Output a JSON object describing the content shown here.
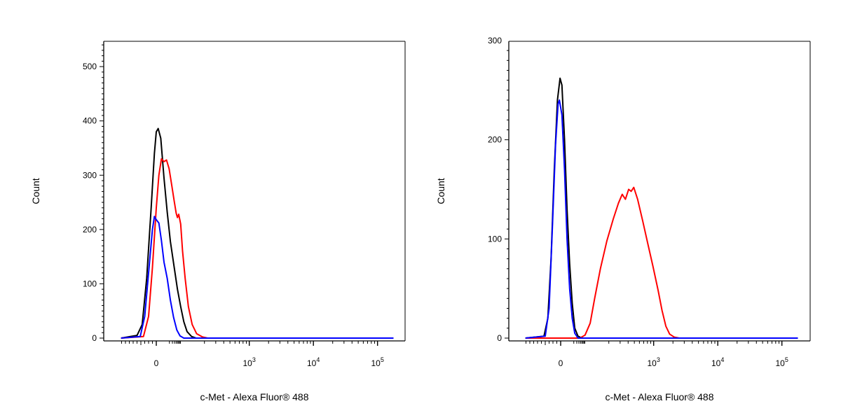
{
  "chart_data": [
    {
      "type": "line",
      "xscale": "biexponential",
      "xlabel": "c-Met - Alexa Fluor® 488",
      "ylabel": "Count",
      "ylim": [
        0,
        550
      ],
      "y_ticks": [
        "0",
        "100",
        "200",
        "300",
        "400",
        "500"
      ],
      "x_ticks": [
        {
          "base": "0",
          "exp": ""
        },
        {
          "base": "10",
          "exp": "3"
        },
        {
          "base": "10",
          "exp": "4"
        },
        {
          "base": "10",
          "exp": "5"
        }
      ],
      "series": [
        {
          "color": "#000000",
          "points": [
            [
              -0.55,
              0
            ],
            [
              -0.3,
              5
            ],
            [
              -0.22,
              25
            ],
            [
              -0.15,
              110
            ],
            [
              -0.08,
              240
            ],
            [
              -0.03,
              340
            ],
            [
              0.0,
              380
            ],
            [
              0.03,
              386
            ],
            [
              0.07,
              368
            ],
            [
              0.12,
              295
            ],
            [
              0.17,
              232
            ],
            [
              0.22,
              178
            ],
            [
              0.28,
              130
            ],
            [
              0.33,
              90
            ],
            [
              0.38,
              58
            ],
            [
              0.43,
              30
            ],
            [
              0.48,
              12
            ],
            [
              0.55,
              3
            ],
            [
              0.62,
              0
            ],
            [
              3.7,
              0
            ]
          ]
        },
        {
          "color": "#ff0000",
          "points": [
            [
              -0.55,
              0
            ],
            [
              -0.2,
              3
            ],
            [
              -0.12,
              40
            ],
            [
              -0.06,
              130
            ],
            [
              0.0,
              240
            ],
            [
              0.04,
              300
            ],
            [
              0.08,
              330
            ],
            [
              0.12,
              325
            ],
            [
              0.16,
              328
            ],
            [
              0.2,
              312
            ],
            [
              0.24,
              282
            ],
            [
              0.28,
              252
            ],
            [
              0.31,
              230
            ],
            [
              0.33,
              222
            ],
            [
              0.35,
              228
            ],
            [
              0.38,
              210
            ],
            [
              0.41,
              160
            ],
            [
              0.45,
              110
            ],
            [
              0.5,
              58
            ],
            [
              0.56,
              25
            ],
            [
              0.63,
              8
            ],
            [
              0.72,
              2
            ],
            [
              0.8,
              0
            ],
            [
              3.7,
              0
            ]
          ]
        },
        {
          "color": "#0000ff",
          "points": [
            [
              -0.55,
              0
            ],
            [
              -0.25,
              3
            ],
            [
              -0.18,
              40
            ],
            [
              -0.12,
              120
            ],
            [
              -0.06,
              200
            ],
            [
              -0.03,
              224
            ],
            [
              0.0,
              218
            ],
            [
              0.04,
              212
            ],
            [
              0.08,
              180
            ],
            [
              0.12,
              140
            ],
            [
              0.17,
              110
            ],
            [
              0.22,
              70
            ],
            [
              0.27,
              38
            ],
            [
              0.32,
              15
            ],
            [
              0.37,
              4
            ],
            [
              0.43,
              0
            ],
            [
              3.7,
              0
            ]
          ]
        }
      ]
    },
    {
      "type": "line",
      "xscale": "biexponential",
      "xlabel": "c-Met - Alexa Fluor® 488",
      "ylabel": "Count",
      "ylim": [
        0,
        300
      ],
      "y_ticks": [
        "0",
        "100",
        "200",
        "300"
      ],
      "x_ticks": [
        {
          "base": "0",
          "exp": ""
        },
        {
          "base": "10",
          "exp": "3"
        },
        {
          "base": "10",
          "exp": "4"
        },
        {
          "base": "10",
          "exp": "5"
        }
      ],
      "series": [
        {
          "color": "#000000",
          "points": [
            [
              -0.55,
              0
            ],
            [
              -0.26,
              2
            ],
            [
              -0.2,
              20
            ],
            [
              -0.15,
              80
            ],
            [
              -0.1,
              170
            ],
            [
              -0.05,
              240
            ],
            [
              -0.01,
              262
            ],
            [
              0.02,
              255
            ],
            [
              0.06,
              200
            ],
            [
              0.1,
              130
            ],
            [
              0.14,
              75
            ],
            [
              0.18,
              35
            ],
            [
              0.22,
              10
            ],
            [
              0.27,
              2
            ],
            [
              0.33,
              0
            ],
            [
              3.7,
              0
            ]
          ]
        },
        {
          "color": "#ff0000",
          "points": [
            [
              -0.55,
              0
            ],
            [
              0.3,
              0
            ],
            [
              0.38,
              3
            ],
            [
              0.46,
              15
            ],
            [
              0.53,
              40
            ],
            [
              0.62,
              70
            ],
            [
              0.72,
              98
            ],
            [
              0.82,
              120
            ],
            [
              0.9,
              136
            ],
            [
              0.96,
              145
            ],
            [
              1.01,
              140
            ],
            [
              1.06,
              150
            ],
            [
              1.1,
              148
            ],
            [
              1.14,
              152
            ],
            [
              1.2,
              140
            ],
            [
              1.28,
              118
            ],
            [
              1.36,
              95
            ],
            [
              1.44,
              72
            ],
            [
              1.52,
              48
            ],
            [
              1.58,
              28
            ],
            [
              1.64,
              12
            ],
            [
              1.7,
              4
            ],
            [
              1.77,
              1
            ],
            [
              1.85,
              0
            ],
            [
              3.7,
              0
            ]
          ]
        },
        {
          "color": "#0000ff",
          "points": [
            [
              -0.55,
              0
            ],
            [
              -0.24,
              2
            ],
            [
              -0.18,
              30
            ],
            [
              -0.13,
              110
            ],
            [
              -0.08,
              195
            ],
            [
              -0.04,
              236
            ],
            [
              -0.02,
              240
            ],
            [
              0.02,
              225
            ],
            [
              0.06,
              170
            ],
            [
              0.1,
              100
            ],
            [
              0.14,
              50
            ],
            [
              0.18,
              20
            ],
            [
              0.22,
              5
            ],
            [
              0.27,
              0
            ],
            [
              3.7,
              0
            ]
          ]
        }
      ]
    }
  ]
}
